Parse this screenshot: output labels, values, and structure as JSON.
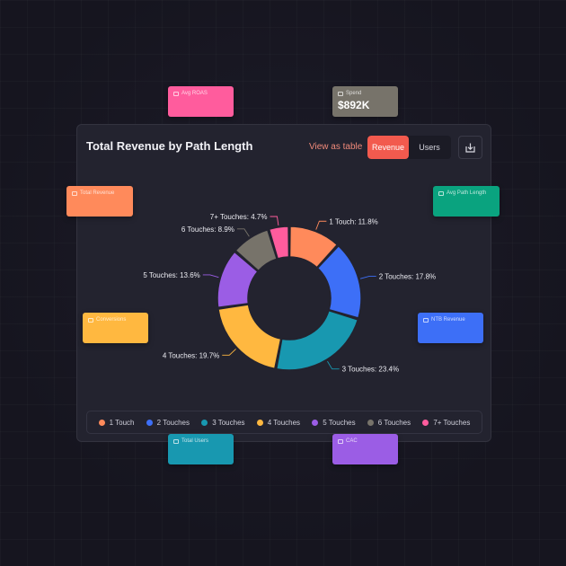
{
  "header": {
    "title": "Total Revenue by Path Length",
    "view_as_table": "View as table",
    "toggle": [
      {
        "label": "Revenue",
        "active": true
      },
      {
        "label": "Users",
        "active": false
      }
    ],
    "download_icon": "download-icon"
  },
  "chart_data": {
    "type": "donut",
    "title": "Total Revenue by Path Length",
    "unit": "%",
    "slices": [
      {
        "name": "1 Touch",
        "value": 11.8,
        "label": "1 Touch: 11.8%",
        "color": "#ff8a5b"
      },
      {
        "name": "2 Touches",
        "value": 17.8,
        "label": "2 Touches: 17.8%",
        "color": "#3d6ff7"
      },
      {
        "name": "3 Touches",
        "value": 23.4,
        "label": "3 Touches: 23.4%",
        "color": "#1898b0"
      },
      {
        "name": "4 Touches",
        "value": 19.7,
        "label": "4 Touches: 19.7%",
        "color": "#ffb840"
      },
      {
        "name": "5 Touches",
        "value": 13.6,
        "label": "5 Touches: 13.6%",
        "color": "#9b5de5"
      },
      {
        "name": "6 Touches",
        "value": 8.9,
        "label": "6 Touches: 8.9%",
        "color": "#77736a"
      },
      {
        "name": "7+ Touches",
        "value": 4.7,
        "label": "7+ Touches: 4.7%",
        "color": "#ff5c9d"
      }
    ],
    "legend_position": "bottom"
  },
  "legend": [
    "1 Touch",
    "2 Touches",
    "3 Touches",
    "4 Touches",
    "5 Touches",
    "6 Touches",
    "7+ Touches"
  ],
  "floating_cards": [
    {
      "id": "avg-roas",
      "label": "Avg ROAS",
      "value": "",
      "color": "#ff5c9d"
    },
    {
      "id": "spend",
      "label": "Spend",
      "value": "$892K",
      "color": "#77736a"
    },
    {
      "id": "total-revenue",
      "label": "Total Revenue",
      "value": "",
      "color": "#ff8a5b"
    },
    {
      "id": "avg-path-length",
      "label": "Avg Path Length",
      "value": "",
      "color": "#0aa37f"
    },
    {
      "id": "conversions",
      "label": "Conversions",
      "value": "",
      "color": "#ffb840"
    },
    {
      "id": "ntb-revenue",
      "label": "NTB Revenue",
      "value": "",
      "color": "#3d6ff7"
    },
    {
      "id": "total-users",
      "label": "Total Users",
      "value": "",
      "color": "#1898b0"
    },
    {
      "id": "cac",
      "label": "CAC",
      "value": "",
      "color": "#9b5de5"
    }
  ]
}
